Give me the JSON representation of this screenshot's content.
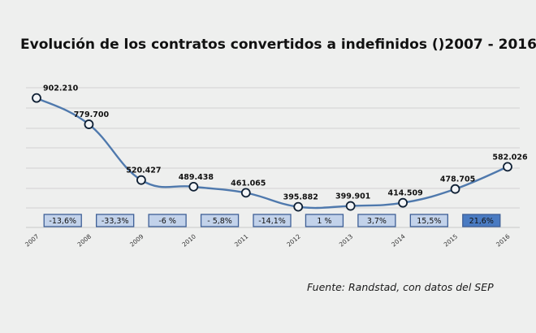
{
  "colors": {
    "background": "#eeefee",
    "line": "#4f79ad",
    "marker_edge": "#0e1f33",
    "pct_box_fill": "#c2d2ea",
    "pct_box_highlight": "#4a7bc2"
  },
  "chart_data": {
    "type": "line",
    "title": "Evolución de los contratos convertidos a indefinidos ()2007 - 2016)",
    "source": "Fuente: Randstad, con datos del SEP",
    "x": [
      "2007",
      "2008",
      "2009",
      "2010",
      "2011",
      "2012",
      "2013",
      "2014",
      "2015",
      "2016"
    ],
    "series": [
      {
        "values": [
          902210,
          779700,
          520427,
          489438,
          461065,
          395882,
          399901,
          414509,
          478705,
          582026
        ],
        "labels": [
          "902.210",
          "779.700",
          "520.427",
          "489.438",
          "461.065",
          "395.882",
          "399.901",
          "414.509",
          "478.705",
          "582.026"
        ]
      }
    ],
    "percent_changes": [
      "-13,6%",
      "-33,3%",
      "-6 %",
      "- 5,8%",
      "-14,1%",
      "1 %",
      "3,7%",
      "15,5%",
      "21,6%"
    ],
    "highlighted_change_index": 8,
    "ylim": [
      300000,
      950000
    ],
    "grid": true,
    "legend": "none"
  }
}
